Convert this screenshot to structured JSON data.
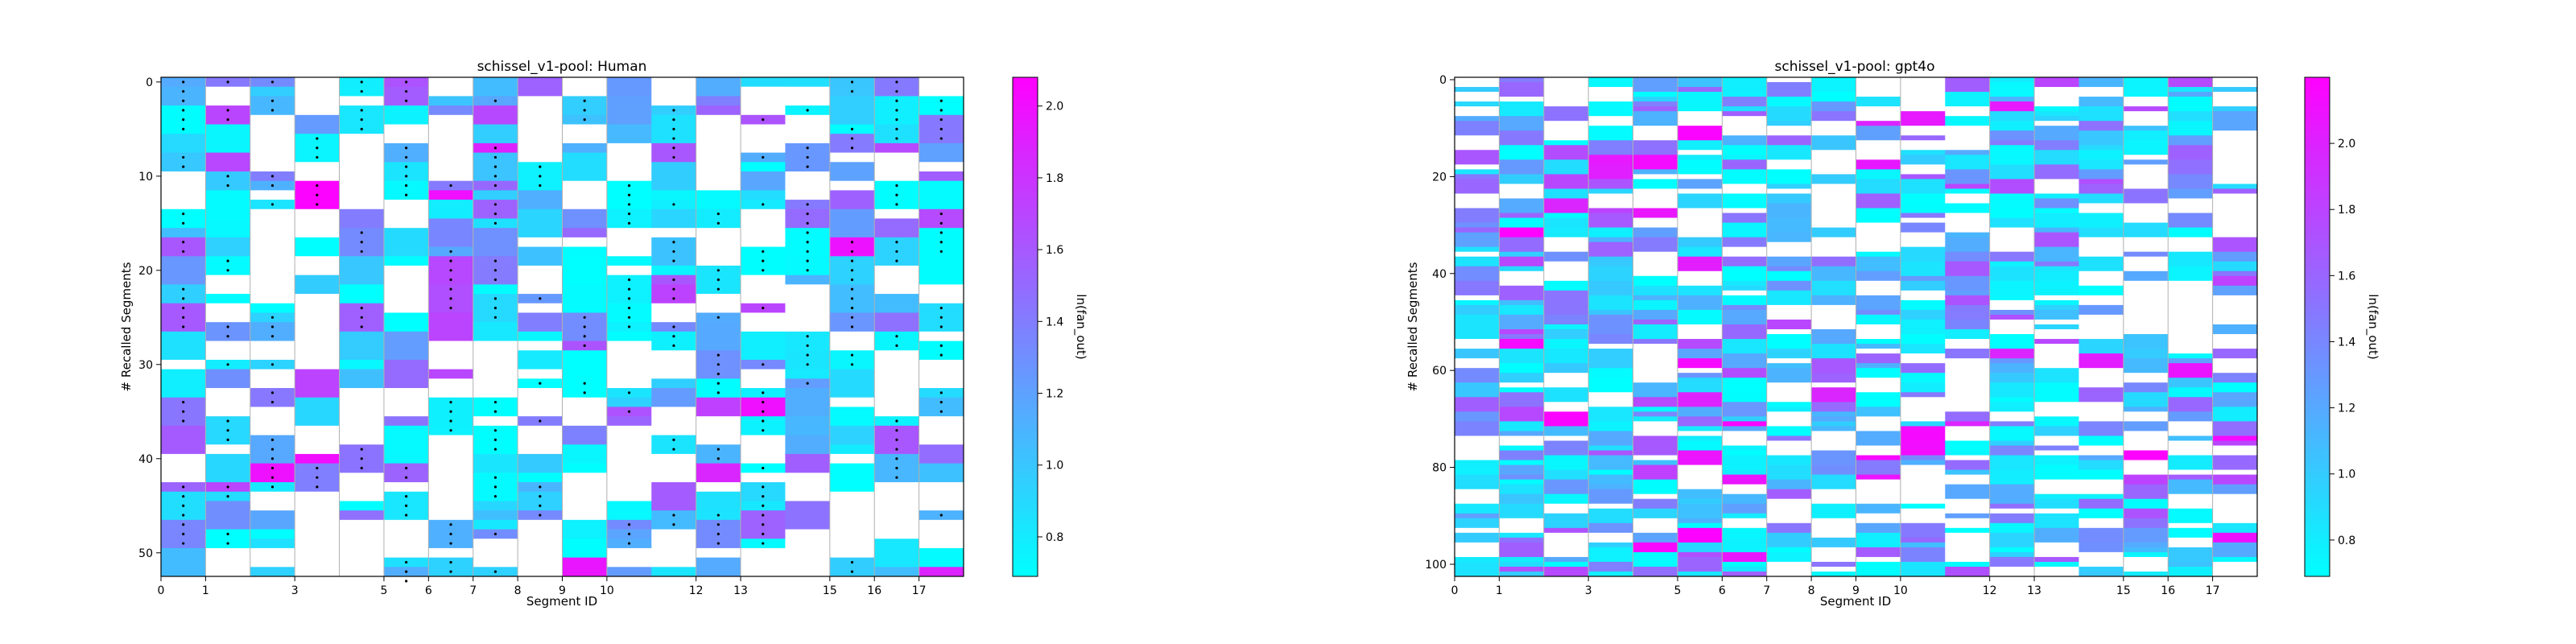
{
  "colors": {
    "cmap_low": "#00ffff",
    "cmap_high": "#ff00ff",
    "empty_cell": "#ffffff",
    "separator_line": "#b0b0b0",
    "marker": "#000000"
  },
  "chart_data": [
    {
      "type": "heatmap",
      "title": "schissel_v1-pool: Human",
      "xlabel": "Segment ID",
      "ylabel": "# Recalled Segments",
      "colorbar_label": "ln(fan_out)",
      "xlim": [
        0,
        18
      ],
      "ylim": [
        0,
        53
      ],
      "x_ticks": [
        "0",
        "1",
        "3",
        "5",
        "6",
        "7",
        "8",
        "9",
        "10",
        "12",
        "13",
        "15",
        "16",
        "17"
      ],
      "y_ticks": [
        "0",
        "10",
        "20",
        "30",
        "40",
        "50"
      ],
      "colorbar_range": [
        0.69,
        2.08
      ],
      "colorbar_ticks": [
        "0.8",
        "1.0",
        "1.2",
        "1.4",
        "1.6",
        "1.8",
        "2.0"
      ],
      "segment_boundaries": [
        0,
        1,
        2,
        3,
        4,
        5,
        6,
        7,
        8,
        9,
        10,
        12,
        13,
        15,
        16,
        17,
        18
      ],
      "markers": "dots on cells where the segment is recalled in order",
      "grid": false
    },
    {
      "type": "heatmap",
      "title": "schissel_v1-pool: gpt4o",
      "xlabel": "Segment ID",
      "ylabel": "# Recalled Segments",
      "colorbar_label": "ln(fan_out)",
      "xlim": [
        0,
        18
      ],
      "ylim": [
        0,
        103
      ],
      "x_ticks": [
        "0",
        "1",
        "3",
        "5",
        "6",
        "7",
        "8",
        "9",
        "10",
        "12",
        "13",
        "15",
        "16",
        "17"
      ],
      "y_ticks": [
        "0",
        "20",
        "40",
        "60",
        "80",
        "100"
      ],
      "colorbar_range": [
        0.69,
        2.2
      ],
      "colorbar_ticks": [
        "0.8",
        "1.0",
        "1.2",
        "1.4",
        "1.6",
        "1.8",
        "2.0"
      ],
      "segment_boundaries": [
        0,
        1,
        2,
        3,
        4,
        5,
        6,
        7,
        8,
        9,
        10,
        12,
        13,
        15,
        16,
        17,
        18
      ],
      "markers": "none",
      "grid": false
    }
  ]
}
